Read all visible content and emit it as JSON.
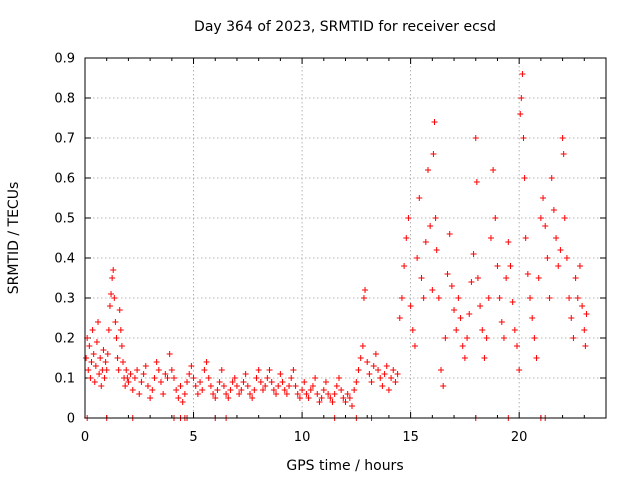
{
  "chart_data": {
    "type": "scatter",
    "title": "Day 364 of 2023, SRMTID for receiver ecsd",
    "xlabel": "GPS time / hours",
    "ylabel": "SRMTID / TECUs",
    "xlim": [
      0,
      24
    ],
    "ylim": [
      0,
      0.9
    ],
    "xticks": [
      0,
      5,
      10,
      15,
      20
    ],
    "xtick_labels": [
      "0",
      "5",
      "10",
      "15",
      "20"
    ],
    "yticks": [
      0,
      0.1,
      0.2,
      0.3,
      0.4,
      0.5,
      0.6,
      0.7,
      0.8,
      0.9
    ],
    "ytick_labels": [
      "0",
      "0.1",
      "0.2",
      "0.3",
      "0.4",
      "0.5",
      "0.6",
      "0.7",
      "0.8",
      "0.9"
    ],
    "grid": true,
    "marker": "+",
    "color": "#ff0000",
    "series": [
      {
        "name": "SRMTID",
        "points": [
          [
            0.05,
            0.15
          ],
          [
            0.1,
            0.2
          ],
          [
            0.15,
            0.12
          ],
          [
            0.2,
            0.18
          ],
          [
            0.25,
            0.1
          ],
          [
            0.3,
            0.14
          ],
          [
            0.35,
            0.22
          ],
          [
            0.4,
            0.16
          ],
          [
            0.45,
            0.09
          ],
          [
            0.5,
            0.13
          ],
          [
            0.55,
            0.19
          ],
          [
            0.6,
            0.24
          ],
          [
            0.65,
            0.11
          ],
          [
            0.7,
            0.15
          ],
          [
            0.75,
            0.08
          ],
          [
            0.8,
            0.12
          ],
          [
            0.85,
            0.17
          ],
          [
            0.9,
            0.1
          ],
          [
            0.95,
            0.14
          ],
          [
            1.0,
            0.12
          ],
          [
            1.05,
            0.16
          ],
          [
            1.1,
            0.22
          ],
          [
            1.15,
            0.28
          ],
          [
            1.2,
            0.31
          ],
          [
            1.25,
            0.35
          ],
          [
            1.3,
            0.37
          ],
          [
            1.35,
            0.3
          ],
          [
            1.4,
            0.24
          ],
          [
            1.45,
            0.2
          ],
          [
            1.5,
            0.15
          ],
          [
            1.55,
            0.12
          ],
          [
            1.6,
            0.27
          ],
          [
            1.65,
            0.22
          ],
          [
            1.7,
            0.18
          ],
          [
            1.75,
            0.14
          ],
          [
            1.8,
            0.1
          ],
          [
            1.85,
            0.08
          ],
          [
            1.9,
            0.12
          ],
          [
            1.95,
            0.1
          ],
          [
            2.0,
            0.09
          ],
          [
            2.1,
            0.11
          ],
          [
            2.2,
            0.07
          ],
          [
            2.3,
            0.1
          ],
          [
            2.4,
            0.12
          ],
          [
            2.5,
            0.06
          ],
          [
            2.6,
            0.09
          ],
          [
            2.7,
            0.11
          ],
          [
            2.8,
            0.13
          ],
          [
            2.9,
            0.08
          ],
          [
            3.0,
            0.05
          ],
          [
            3.1,
            0.07
          ],
          [
            3.2,
            0.1
          ],
          [
            3.3,
            0.14
          ],
          [
            3.4,
            0.12
          ],
          [
            3.5,
            0.09
          ],
          [
            3.6,
            0.06
          ],
          [
            3.7,
            0.11
          ],
          [
            3.8,
            0.1
          ],
          [
            3.9,
            0.16
          ],
          [
            4.0,
            0.12
          ],
          [
            4.1,
            0.1
          ],
          [
            4.2,
            0.07
          ],
          [
            4.3,
            0.05
          ],
          [
            4.4,
            0.08
          ],
          [
            4.5,
            0.04
          ],
          [
            4.6,
            0.06
          ],
          [
            4.7,
            0.09
          ],
          [
            4.8,
            0.11
          ],
          [
            4.9,
            0.13
          ],
          [
            5.0,
            0.1
          ],
          [
            5.1,
            0.08
          ],
          [
            5.2,
            0.06
          ],
          [
            5.3,
            0.09
          ],
          [
            5.4,
            0.07
          ],
          [
            5.5,
            0.12
          ],
          [
            5.6,
            0.14
          ],
          [
            5.7,
            0.1
          ],
          [
            5.8,
            0.08
          ],
          [
            5.9,
            0.06
          ],
          [
            6.0,
            0.05
          ],
          [
            6.1,
            0.07
          ],
          [
            6.2,
            0.09
          ],
          [
            6.3,
            0.12
          ],
          [
            6.4,
            0.08
          ],
          [
            6.5,
            0.06
          ],
          [
            6.6,
            0.05
          ],
          [
            6.7,
            0.07
          ],
          [
            6.8,
            0.09
          ],
          [
            6.9,
            0.1
          ],
          [
            7.0,
            0.08
          ],
          [
            7.1,
            0.06
          ],
          [
            7.2,
            0.07
          ],
          [
            7.3,
            0.09
          ],
          [
            7.4,
            0.11
          ],
          [
            7.5,
            0.08
          ],
          [
            7.6,
            0.06
          ],
          [
            7.7,
            0.05
          ],
          [
            7.8,
            0.07
          ],
          [
            7.9,
            0.1
          ],
          [
            8.0,
            0.12
          ],
          [
            8.1,
            0.09
          ],
          [
            8.2,
            0.07
          ],
          [
            8.3,
            0.08
          ],
          [
            8.4,
            0.1
          ],
          [
            8.5,
            0.12
          ],
          [
            8.6,
            0.09
          ],
          [
            8.7,
            0.07
          ],
          [
            8.8,
            0.06
          ],
          [
            8.9,
            0.08
          ],
          [
            9.0,
            0.11
          ],
          [
            9.1,
            0.09
          ],
          [
            9.2,
            0.07
          ],
          [
            9.3,
            0.06
          ],
          [
            9.4,
            0.08
          ],
          [
            9.5,
            0.1
          ],
          [
            9.6,
            0.12
          ],
          [
            9.7,
            0.08
          ],
          [
            9.8,
            0.06
          ],
          [
            9.9,
            0.05
          ],
          [
            10.0,
            0.07
          ],
          [
            10.1,
            0.09
          ],
          [
            10.2,
            0.06
          ],
          [
            10.3,
            0.05
          ],
          [
            10.4,
            0.07
          ],
          [
            10.5,
            0.08
          ],
          [
            10.6,
            0.1
          ],
          [
            10.7,
            0.06
          ],
          [
            10.8,
            0.04
          ],
          [
            10.9,
            0.05
          ],
          [
            11.0,
            0.07
          ],
          [
            11.1,
            0.09
          ],
          [
            11.2,
            0.06
          ],
          [
            11.3,
            0.05
          ],
          [
            11.4,
            0.04
          ],
          [
            11.5,
            0.06
          ],
          [
            11.6,
            0.08
          ],
          [
            11.7,
            0.1
          ],
          [
            11.8,
            0.07
          ],
          [
            11.9,
            0.05
          ],
          [
            12.0,
            0.04
          ],
          [
            12.1,
            0.06
          ],
          [
            12.2,
            0.05
          ],
          [
            12.3,
            0.03
          ],
          [
            12.4,
            0.07
          ],
          [
            12.5,
            0.09
          ],
          [
            12.6,
            0.12
          ],
          [
            12.7,
            0.15
          ],
          [
            12.8,
            0.18
          ],
          [
            12.85,
            0.3
          ],
          [
            12.9,
            0.32
          ],
          [
            13.0,
            0.14
          ],
          [
            13.1,
            0.11
          ],
          [
            13.2,
            0.09
          ],
          [
            13.3,
            0.13
          ],
          [
            13.4,
            0.16
          ],
          [
            13.5,
            0.12
          ],
          [
            13.6,
            0.1
          ],
          [
            13.7,
            0.08
          ],
          [
            13.8,
            0.11
          ],
          [
            13.9,
            0.13
          ],
          [
            14.0,
            0.07
          ],
          [
            14.1,
            0.1
          ],
          [
            14.2,
            0.12
          ],
          [
            14.3,
            0.09
          ],
          [
            14.4,
            0.11
          ],
          [
            14.5,
            0.25
          ],
          [
            14.6,
            0.3
          ],
          [
            14.7,
            0.38
          ],
          [
            14.8,
            0.45
          ],
          [
            14.9,
            0.5
          ],
          [
            15.0,
            0.28
          ],
          [
            15.1,
            0.22
          ],
          [
            15.2,
            0.18
          ],
          [
            15.3,
            0.4
          ],
          [
            15.4,
            0.55
          ],
          [
            15.5,
            0.35
          ],
          [
            15.6,
            0.3
          ],
          [
            15.7,
            0.44
          ],
          [
            15.8,
            0.62
          ],
          [
            15.9,
            0.48
          ],
          [
            16.0,
            0.32
          ],
          [
            16.05,
            0.66
          ],
          [
            16.1,
            0.74
          ],
          [
            16.15,
            0.5
          ],
          [
            16.2,
            0.42
          ],
          [
            16.3,
            0.3
          ],
          [
            16.4,
            0.12
          ],
          [
            16.5,
            0.08
          ],
          [
            16.6,
            0.2
          ],
          [
            16.7,
            0.36
          ],
          [
            16.8,
            0.46
          ],
          [
            16.9,
            0.33
          ],
          [
            17.0,
            0.27
          ],
          [
            17.1,
            0.22
          ],
          [
            17.2,
            0.3
          ],
          [
            17.3,
            0.25
          ],
          [
            17.4,
            0.18
          ],
          [
            17.5,
            0.15
          ],
          [
            17.6,
            0.2
          ],
          [
            17.7,
            0.26
          ],
          [
            17.8,
            0.34
          ],
          [
            17.9,
            0.41
          ],
          [
            18.0,
            0.7
          ],
          [
            18.05,
            0.59
          ],
          [
            18.1,
            0.35
          ],
          [
            18.2,
            0.28
          ],
          [
            18.3,
            0.22
          ],
          [
            18.4,
            0.15
          ],
          [
            18.5,
            0.2
          ],
          [
            18.6,
            0.3
          ],
          [
            18.7,
            0.45
          ],
          [
            18.8,
            0.62
          ],
          [
            18.9,
            0.5
          ],
          [
            19.0,
            0.38
          ],
          [
            19.1,
            0.3
          ],
          [
            19.2,
            0.24
          ],
          [
            19.3,
            0.2
          ],
          [
            19.4,
            0.35
          ],
          [
            19.5,
            0.44
          ],
          [
            19.6,
            0.38
          ],
          [
            19.7,
            0.29
          ],
          [
            19.8,
            0.22
          ],
          [
            19.9,
            0.18
          ],
          [
            20.0,
            0.12
          ],
          [
            20.05,
            0.76
          ],
          [
            20.1,
            0.8
          ],
          [
            20.15,
            0.86
          ],
          [
            20.2,
            0.7
          ],
          [
            20.25,
            0.6
          ],
          [
            20.3,
            0.45
          ],
          [
            20.4,
            0.36
          ],
          [
            20.5,
            0.3
          ],
          [
            20.6,
            0.25
          ],
          [
            20.7,
            0.2
          ],
          [
            20.8,
            0.15
          ],
          [
            20.9,
            0.35
          ],
          [
            21.0,
            0.5
          ],
          [
            21.1,
            0.55
          ],
          [
            21.2,
            0.48
          ],
          [
            21.3,
            0.4
          ],
          [
            21.4,
            0.3
          ],
          [
            21.5,
            0.6
          ],
          [
            21.6,
            0.52
          ],
          [
            21.7,
            0.45
          ],
          [
            21.8,
            0.38
          ],
          [
            21.9,
            0.42
          ],
          [
            22.0,
            0.7
          ],
          [
            22.05,
            0.66
          ],
          [
            22.1,
            0.5
          ],
          [
            22.2,
            0.4
          ],
          [
            22.3,
            0.3
          ],
          [
            22.4,
            0.25
          ],
          [
            22.5,
            0.2
          ],
          [
            22.6,
            0.35
          ],
          [
            22.7,
            0.3
          ],
          [
            22.8,
            0.38
          ],
          [
            22.9,
            0.28
          ],
          [
            23.0,
            0.22
          ],
          [
            23.05,
            0.18
          ],
          [
            23.1,
            0.26
          ]
        ]
      }
    ],
    "baseline_points": [
      0.1,
      1.0,
      2.2,
      4.1,
      4.4,
      4.6,
      4.7,
      6.0,
      6.5,
      11.5,
      12.5,
      13.2,
      18.0,
      19.5,
      21.0,
      21.2
    ]
  }
}
